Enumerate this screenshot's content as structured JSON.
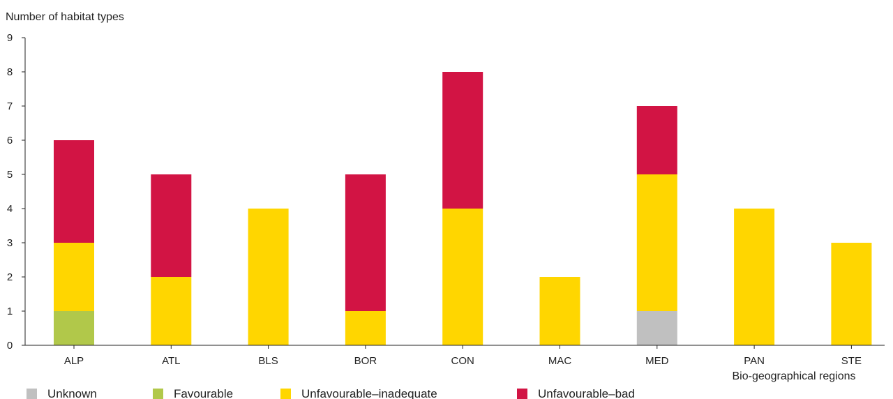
{
  "chart_data": {
    "type": "bar",
    "stacked": true,
    "ylabel": "Number of habitat types",
    "xlabel": "Bio-geographical regions",
    "ylim": [
      0,
      9
    ],
    "yticks": [
      0,
      1,
      2,
      3,
      4,
      5,
      6,
      7,
      8,
      9
    ],
    "grid": false,
    "legend_position": "bottom",
    "categories": [
      "ALP",
      "ATL",
      "BLS",
      "BOR",
      "CON",
      "MAC",
      "MED",
      "PAN",
      "STE"
    ],
    "series": [
      {
        "name": "Unknown",
        "color": "#c0c0c0",
        "values": [
          0,
          0,
          0,
          0,
          0,
          0,
          1,
          0,
          0
        ]
      },
      {
        "name": "Favourable",
        "color": "#b1c84a",
        "values": [
          1,
          0,
          0,
          0,
          0,
          0,
          0,
          0,
          0
        ]
      },
      {
        "name": "Unfavourable–inadequate",
        "color": "#ffd600",
        "values": [
          2,
          2,
          4,
          1,
          4,
          2,
          4,
          4,
          3
        ]
      },
      {
        "name": "Unfavourable–bad",
        "color": "#d21444",
        "values": [
          3,
          3,
          0,
          4,
          4,
          0,
          2,
          0,
          0
        ]
      }
    ]
  }
}
